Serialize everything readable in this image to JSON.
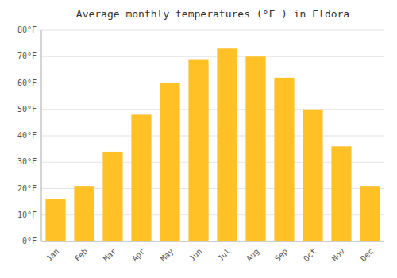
{
  "chart_data": {
    "type": "bar",
    "title": "Average monthly temperatures (°F ) in Eldora",
    "categories": [
      "Jan",
      "Feb",
      "Mar",
      "Apr",
      "May",
      "Jun",
      "Jul",
      "Aug",
      "Sep",
      "Oct",
      "Nov",
      "Dec"
    ],
    "values": [
      16,
      21,
      34,
      48,
      60,
      69,
      73,
      70,
      62,
      50,
      36,
      21
    ],
    "color": "#FFC125",
    "ylim": [
      0,
      80
    ],
    "yticks": [
      {
        "value": 0,
        "label": "0°F"
      },
      {
        "value": 10,
        "label": "10°F"
      },
      {
        "value": 20,
        "label": "20°F"
      },
      {
        "value": 30,
        "label": "30°F"
      },
      {
        "value": 40,
        "label": "40°F"
      },
      {
        "value": 50,
        "label": "50°F"
      },
      {
        "value": 60,
        "label": "60°F"
      },
      {
        "value": 70,
        "label": "70°F"
      },
      {
        "value": 80,
        "label": "80°F"
      }
    ],
    "grid": true
  }
}
